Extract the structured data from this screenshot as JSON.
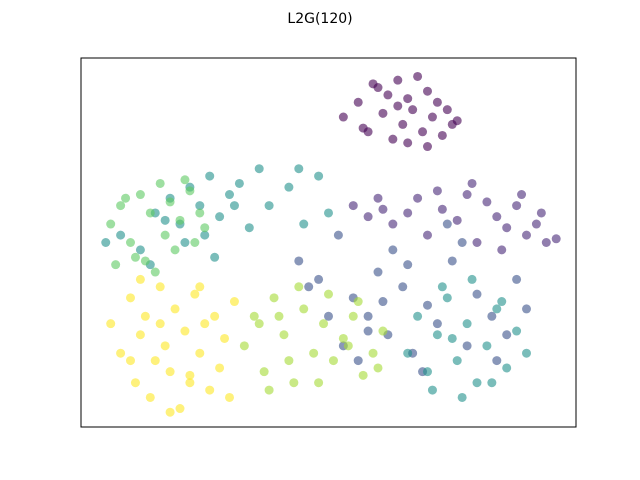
{
  "chart_data": {
    "type": "scatter",
    "title": "L2G(120)",
    "xlim": [
      0,
      100
    ],
    "ylim": [
      0,
      100
    ],
    "xticks": [],
    "yticks": [],
    "grid": false,
    "alpha": 0.6,
    "series": [
      {
        "color": "#440154",
        "x": [
          53,
          56,
          58,
          60,
          61,
          63,
          64,
          65,
          66,
          67,
          68,
          69,
          70,
          71,
          72,
          73,
          74,
          75,
          76,
          62,
          59,
          66,
          70,
          64,
          57
        ],
        "values": [
          84,
          88,
          80,
          92,
          85,
          78,
          94,
          82,
          89,
          86,
          95,
          80,
          91,
          84,
          88,
          79,
          86,
          82,
          83,
          90,
          93,
          77,
          76,
          87,
          81
        ]
      },
      {
        "color": "#482878",
        "x": [
          55,
          58,
          60,
          63,
          66,
          70,
          73,
          76,
          78,
          80,
          82,
          84,
          86,
          88,
          90,
          92,
          94,
          96,
          72,
          79,
          85,
          68,
          61,
          89,
          93
        ],
        "values": [
          60,
          57,
          62,
          55,
          58,
          52,
          59,
          56,
          63,
          50,
          61,
          57,
          54,
          60,
          52,
          55,
          50,
          51,
          64,
          66,
          48,
          62,
          59,
          63,
          58
        ]
      },
      {
        "color": "#3b528b",
        "x": [
          44,
          48,
          52,
          55,
          58,
          60,
          62,
          65,
          67,
          70,
          72,
          75,
          78,
          80,
          83,
          86,
          88,
          90,
          56,
          63,
          69,
          74,
          50,
          58,
          66,
          77,
          84,
          46,
          53,
          61
        ],
        "values": [
          45,
          40,
          52,
          35,
          30,
          42,
          25,
          38,
          20,
          33,
          28,
          45,
          22,
          36,
          30,
          25,
          40,
          32,
          18,
          48,
          15,
          55,
          30,
          26,
          44,
          50,
          18,
          38,
          22,
          34
        ]
      },
      {
        "color": "#21918c",
        "x": [
          66,
          68,
          70,
          72,
          74,
          76,
          78,
          80,
          82,
          84,
          86,
          88,
          90,
          73,
          79,
          85,
          71,
          77,
          83,
          75,
          5,
          8,
          12,
          15,
          18,
          20,
          22,
          24,
          26,
          28,
          30,
          32,
          34,
          36,
          25,
          21,
          17,
          14,
          27,
          31,
          38,
          42,
          45,
          48,
          50,
          44
        ],
        "values": [
          20,
          30,
          15,
          25,
          35,
          18,
          28,
          12,
          22,
          32,
          16,
          26,
          20,
          38,
          40,
          34,
          10,
          8,
          12,
          24,
          50,
          52,
          48,
          58,
          62,
          55,
          65,
          60,
          68,
          57,
          63,
          66,
          54,
          70,
          52,
          50,
          56,
          44,
          46,
          60,
          60,
          65,
          55,
          68,
          58,
          70
        ]
      },
      {
        "color": "#5ec962",
        "x": [
          6,
          8,
          10,
          12,
          13,
          14,
          16,
          17,
          18,
          19,
          20,
          22,
          23,
          24,
          11,
          9,
          15,
          21,
          7,
          25
        ],
        "values": [
          55,
          60,
          50,
          63,
          45,
          58,
          66,
          52,
          61,
          48,
          56,
          64,
          50,
          58,
          46,
          62,
          42,
          67,
          44,
          54
        ]
      },
      {
        "color": "#a5db36",
        "x": [
          33,
          35,
          37,
          39,
          41,
          43,
          45,
          47,
          49,
          51,
          53,
          55,
          57,
          59,
          61,
          38,
          44,
          50,
          56,
          36,
          42,
          48,
          54,
          60,
          40
        ],
        "values": [
          22,
          30,
          15,
          35,
          25,
          12,
          32,
          20,
          28,
          18,
          24,
          30,
          14,
          20,
          26,
          10,
          38,
          36,
          34,
          28,
          18,
          12,
          22,
          16,
          30
        ]
      },
      {
        "color": "#fde725",
        "x": [
          6,
          8,
          10,
          11,
          12,
          13,
          14,
          15,
          16,
          17,
          18,
          19,
          20,
          21,
          22,
          23,
          24,
          25,
          26,
          27,
          28,
          29,
          30,
          31,
          12,
          18,
          24,
          10,
          16,
          22
        ],
        "values": [
          28,
          20,
          35,
          12,
          25,
          30,
          8,
          18,
          38,
          22,
          15,
          32,
          5,
          26,
          12,
          36,
          20,
          28,
          10,
          30,
          16,
          24,
          8,
          34,
          40,
          4,
          38,
          18,
          28,
          14
        ]
      }
    ]
  }
}
